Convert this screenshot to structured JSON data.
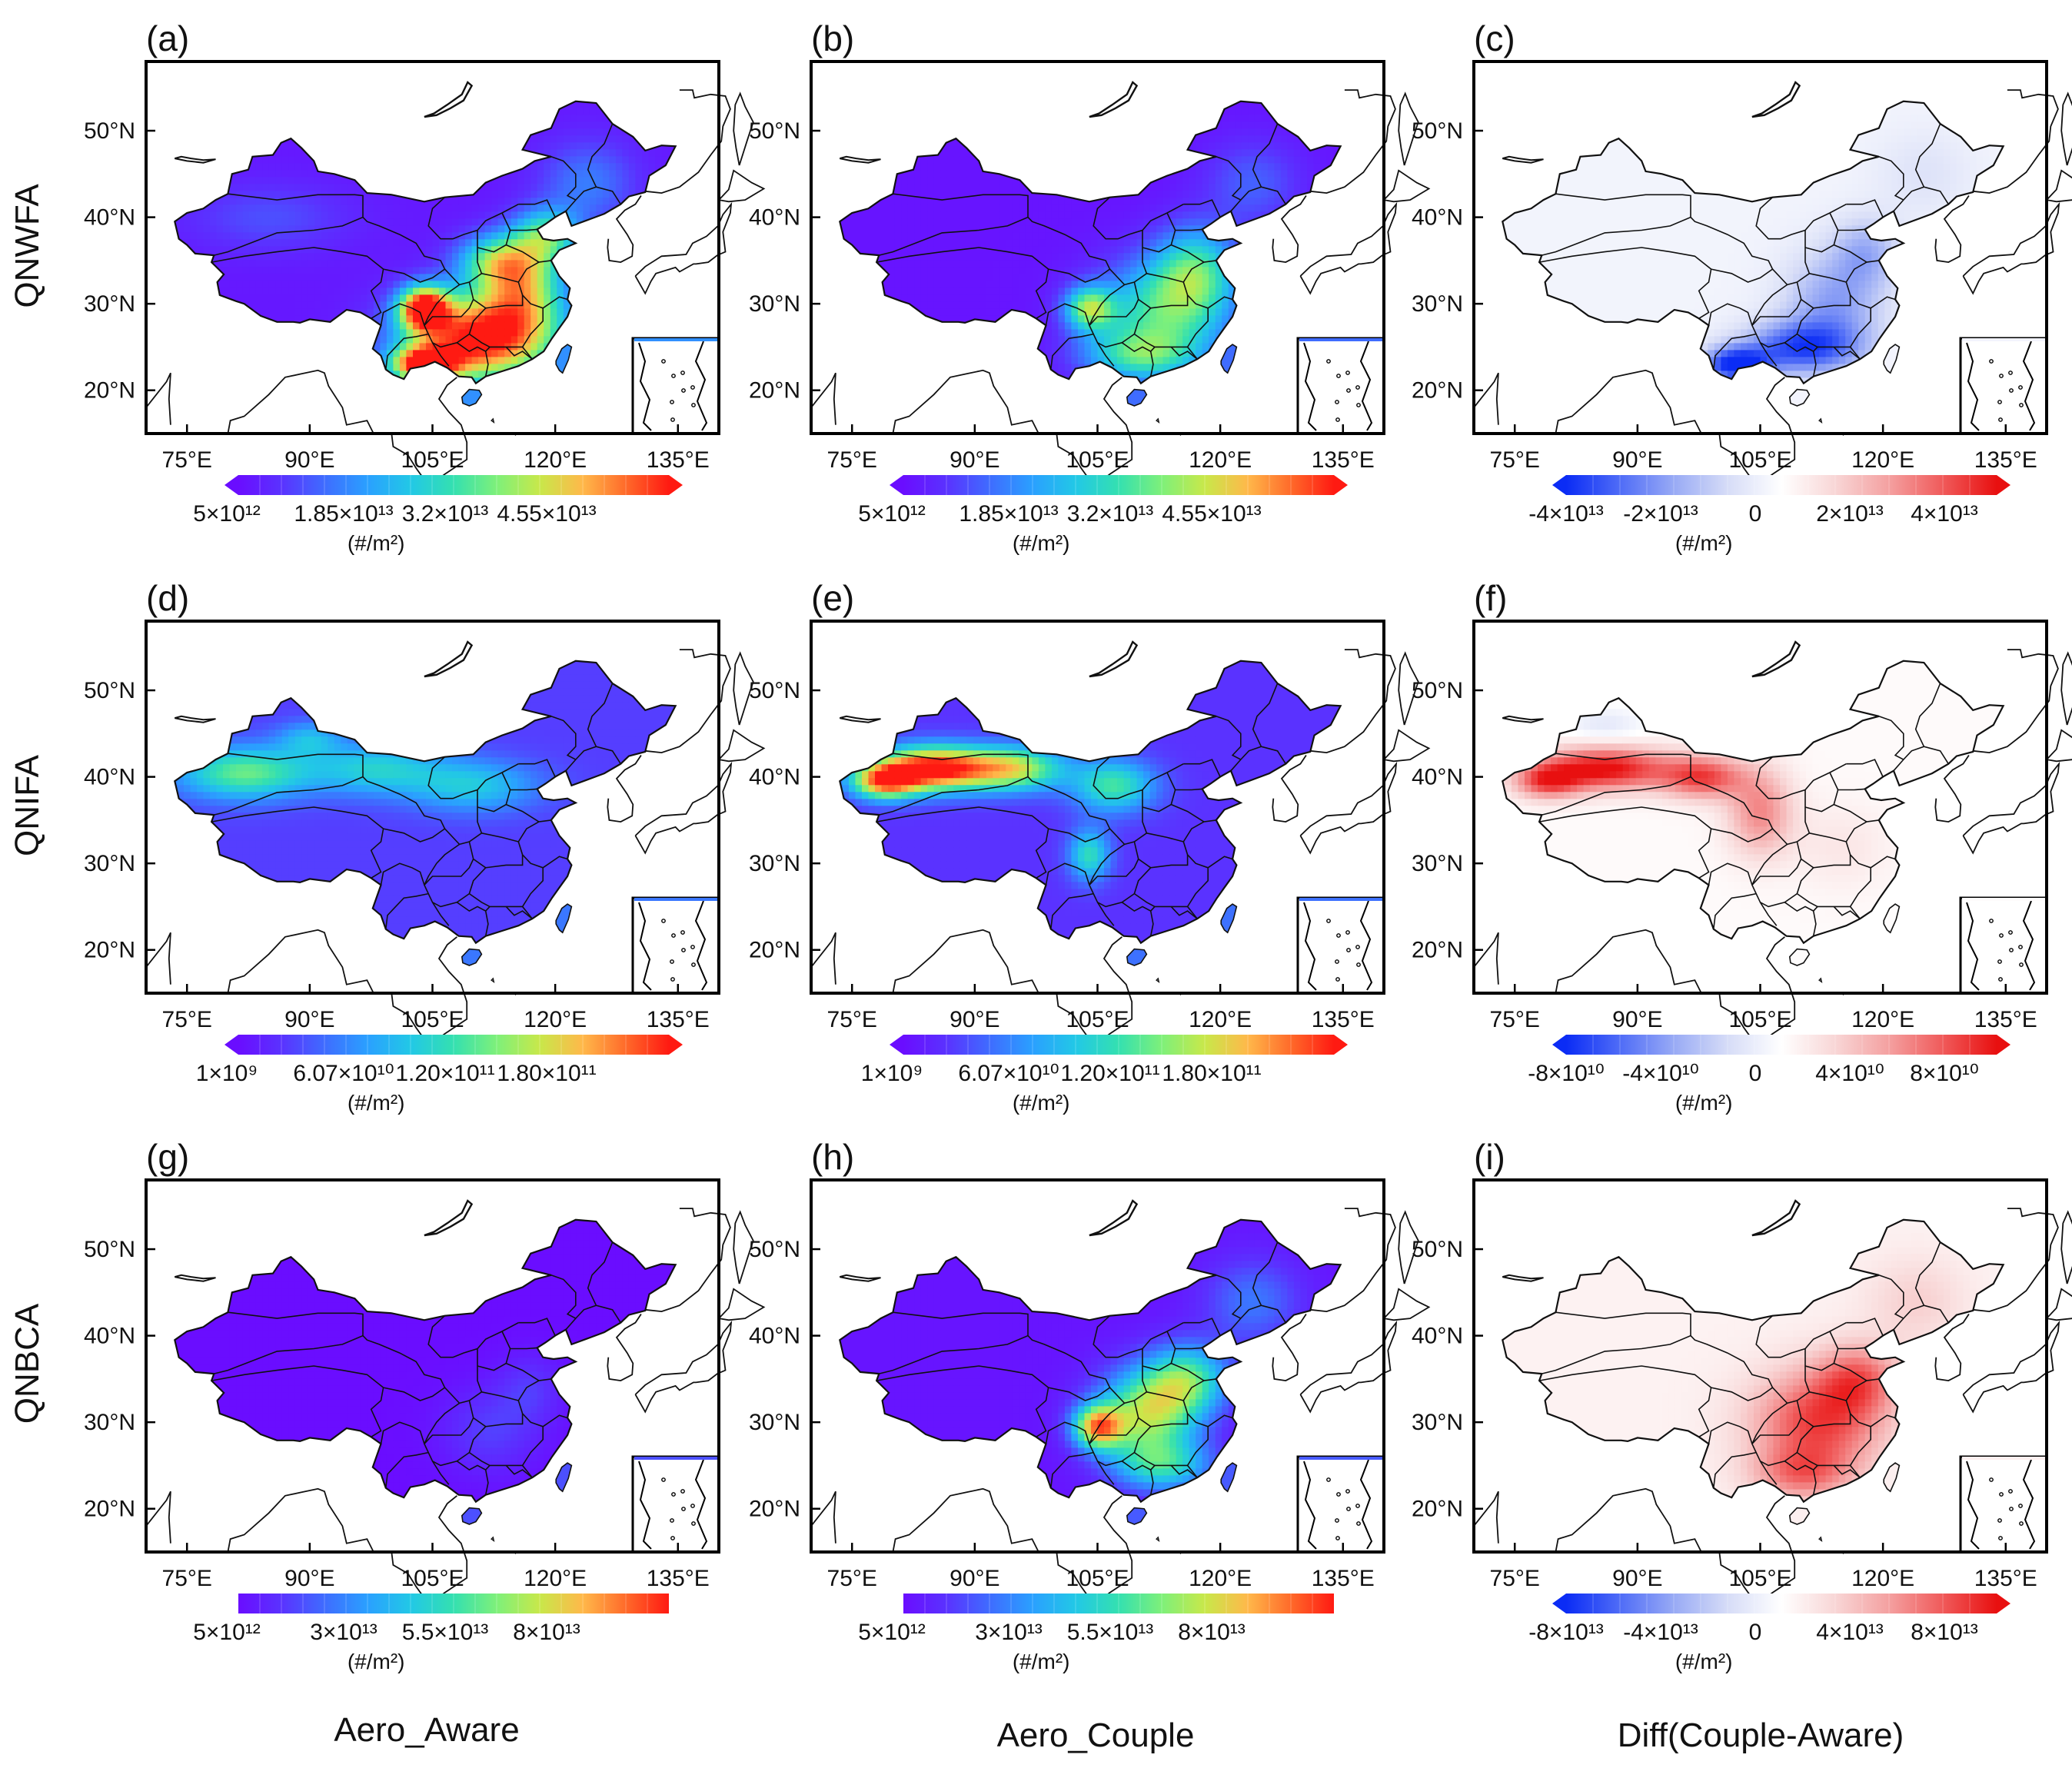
{
  "figure": {
    "row_labels": [
      "QNWFA",
      "QNIFA",
      "QNBCA"
    ],
    "column_labels": [
      "Aero_Aware",
      "Aero_Couple",
      "Diff(Couple-Aware)"
    ],
    "lon_ticks": [
      "75°E",
      "90°E",
      "105°E",
      "120°E",
      "135°E"
    ],
    "lat_ticks": [
      "50°N",
      "40°N",
      "30°N",
      "20°N"
    ],
    "colorbar_unit": "(#/m²)"
  },
  "panels": [
    {
      "label": "(a)",
      "row": 0,
      "col": 0,
      "variable": "QNWFA",
      "case": "Aero_Aware",
      "palette": "rainbow",
      "field": "nwfa_aware",
      "colorbar": {
        "ticks": [
          "5×10¹²",
          "1.85×10¹³",
          "3.2×10¹³",
          "4.55×10¹³"
        ],
        "extend": "both"
      }
    },
    {
      "label": "(b)",
      "row": 0,
      "col": 1,
      "variable": "QNWFA",
      "case": "Aero_Couple",
      "palette": "rainbow",
      "field": "nwfa_couple",
      "colorbar": {
        "ticks": [
          "5×10¹²",
          "1.85×10¹³",
          "3.2×10¹³",
          "4.55×10¹³"
        ],
        "extend": "both"
      }
    },
    {
      "label": "(c)",
      "row": 0,
      "col": 2,
      "variable": "QNWFA",
      "case": "Diff(Couple-Aware)",
      "palette": "diverging",
      "field": "nwfa_diff",
      "colorbar": {
        "ticks": [
          "-4×10¹³",
          "-2×10¹³",
          "0",
          "2×10¹³",
          "4×10¹³"
        ],
        "extend": "both"
      }
    },
    {
      "label": "(d)",
      "row": 1,
      "col": 0,
      "variable": "QNIFA",
      "case": "Aero_Aware",
      "palette": "rainbow",
      "field": "nifa_aware",
      "colorbar": {
        "ticks": [
          "1×10⁹",
          "6.07×10¹⁰",
          "1.20×10¹¹",
          "1.80×10¹¹"
        ],
        "extend": "both"
      }
    },
    {
      "label": "(e)",
      "row": 1,
      "col": 1,
      "variable": "QNIFA",
      "case": "Aero_Couple",
      "palette": "rainbow",
      "field": "nifa_couple",
      "colorbar": {
        "ticks": [
          "1×10⁹",
          "6.07×10¹⁰",
          "1.20×10¹¹",
          "1.80×10¹¹"
        ],
        "extend": "both"
      }
    },
    {
      "label": "(f)",
      "row": 1,
      "col": 2,
      "variable": "QNIFA",
      "case": "Diff(Couple-Aware)",
      "palette": "diverging",
      "field": "nifa_diff",
      "colorbar": {
        "ticks": [
          "-8×10¹⁰",
          "-4×10¹⁰",
          "0",
          "4×10¹⁰",
          "8×10¹⁰"
        ],
        "extend": "both"
      }
    },
    {
      "label": "(g)",
      "row": 2,
      "col": 0,
      "variable": "QNBCA",
      "case": "Aero_Aware",
      "palette": "rainbow",
      "field": "nbca_aware",
      "colorbar": {
        "ticks": [
          "5×10¹²",
          "3×10¹³",
          "5.5×10¹³",
          "8×10¹³"
        ],
        "extend": "none"
      }
    },
    {
      "label": "(h)",
      "row": 2,
      "col": 1,
      "variable": "QNBCA",
      "case": "Aero_Couple",
      "palette": "rainbow",
      "field": "nbca_couple",
      "colorbar": {
        "ticks": [
          "5×10¹²",
          "3×10¹³",
          "5.5×10¹³",
          "8×10¹³"
        ],
        "extend": "none"
      }
    },
    {
      "label": "(i)",
      "row": 2,
      "col": 2,
      "variable": "QNBCA",
      "case": "Diff(Couple-Aware)",
      "palette": "diverging",
      "field": "nbca_diff",
      "colorbar": {
        "ticks": [
          "-8×10¹³",
          "-4×10¹³",
          "0",
          "4×10¹³",
          "8×10¹³"
        ],
        "extend": "both"
      }
    }
  ],
  "colors": {
    "rainbow": [
      "#6a0dff",
      "#5a32ff",
      "#3f6cff",
      "#2aa0ff",
      "#22c8e6",
      "#34e0b0",
      "#7ef07a",
      "#c8e84a",
      "#ffb84a",
      "#ff6a2a",
      "#ff1a12"
    ],
    "diverging": [
      "#0b2cf5",
      "#4f6cf7",
      "#98aaf5",
      "#d6dcf7",
      "#ffffff",
      "#f8d6d6",
      "#f4a0a0",
      "#f05a5a",
      "#e81010"
    ],
    "land_border": "#111111",
    "coast": "#111111"
  }
}
